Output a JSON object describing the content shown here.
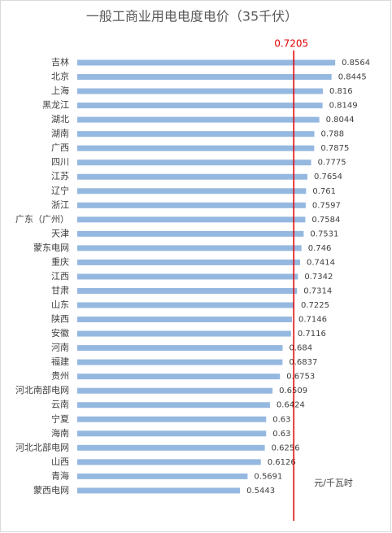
{
  "chart_data": {
    "type": "bar",
    "orientation": "horizontal",
    "title": "一般工商业用电电度电价（35千伏）",
    "categories": [
      "吉林",
      "北京",
      "上海",
      "黑龙江",
      "湖北",
      "湖南",
      "广西",
      "四川",
      "江苏",
      "辽宁",
      "浙江",
      "广东（广州）",
      "天津",
      "蒙东电网",
      "重庆",
      "江西",
      "甘肃",
      "山东",
      "陕西",
      "安徽",
      "河南",
      "福建",
      "贵州",
      "河北南部电网",
      "云南",
      "宁夏",
      "海南",
      "河北北部电网",
      "山西",
      "青海",
      "蒙西电网"
    ],
    "values": [
      0.8564,
      0.8445,
      0.816,
      0.8149,
      0.8044,
      0.788,
      0.7875,
      0.7775,
      0.7654,
      0.761,
      0.7597,
      0.7584,
      0.7531,
      0.746,
      0.7414,
      0.7342,
      0.7314,
      0.7225,
      0.7146,
      0.7116,
      0.684,
      0.6837,
      0.6753,
      0.6509,
      0.6424,
      0.63,
      0.63,
      0.6256,
      0.6126,
      0.5691,
      0.5443
    ],
    "color": "#95b8e0",
    "xlim": [
      0,
      1
    ],
    "reference_line": {
      "value": 0.7205,
      "color": "#e00000"
    },
    "unit_label": "元/千瓦时"
  }
}
